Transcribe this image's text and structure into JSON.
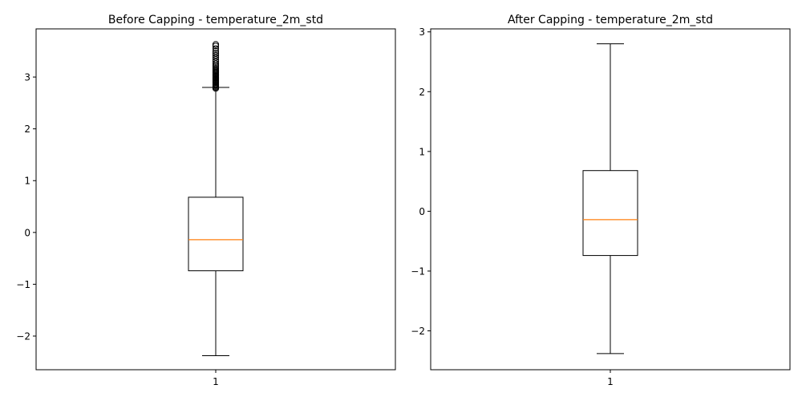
{
  "chart_data": [
    {
      "type": "box",
      "title": "Before Capping - temperature_2m_std",
      "xticks": [
        "1"
      ],
      "ylim": [
        -2.65,
        3.93
      ],
      "yticks": [
        -2,
        -1,
        0,
        1,
        2,
        3
      ],
      "ytick_labels": [
        "−2",
        "−1",
        "0",
        "1",
        "2",
        "3"
      ],
      "box": {
        "whisker_low": -2.38,
        "q1": -0.74,
        "median": -0.14,
        "q3": 0.68,
        "whisker_high": 2.8
      },
      "fliers": [
        2.78,
        2.8,
        2.82,
        2.84,
        2.86,
        2.88,
        2.9,
        2.92,
        2.94,
        2.96,
        2.98,
        3.0,
        3.02,
        3.04,
        3.06,
        3.08,
        3.1,
        3.12,
        3.14,
        3.17,
        3.2,
        3.23,
        3.26,
        3.3,
        3.34,
        3.38,
        3.42,
        3.46,
        3.5,
        3.55,
        3.6,
        3.63
      ],
      "colors": {
        "box": "#000000",
        "median": "#ff7f0e",
        "flier_edge": "#000000"
      }
    },
    {
      "type": "box",
      "title": "After Capping - temperature_2m_std",
      "xticks": [
        "1"
      ],
      "ylim": [
        -2.65,
        3.05
      ],
      "yticks": [
        -2,
        -1,
        0,
        1,
        2,
        3
      ],
      "ytick_labels": [
        "−2",
        "−1",
        "0",
        "1",
        "2",
        "3"
      ],
      "box": {
        "whisker_low": -2.38,
        "q1": -0.74,
        "median": -0.14,
        "q3": 0.68,
        "whisker_high": 2.8
      },
      "fliers": [],
      "colors": {
        "box": "#000000",
        "median": "#ff7f0e",
        "flier_edge": "#000000"
      }
    }
  ]
}
